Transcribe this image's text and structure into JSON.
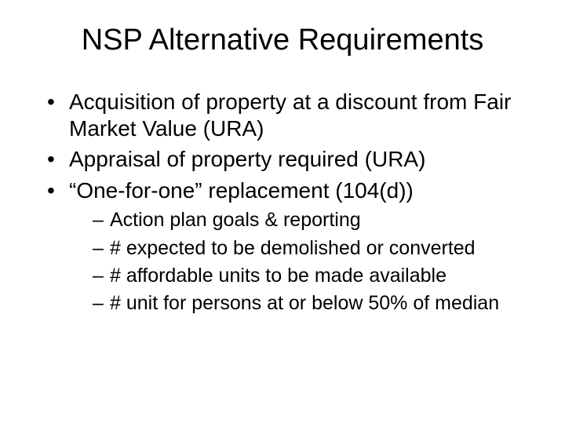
{
  "title": "NSP Alternative Requirements",
  "bullets": [
    {
      "text": "Acquisition of property at a discount from Fair Market Value (URA)"
    },
    {
      "text": "Appraisal of property required (URA)"
    },
    {
      "text": "“One-for-one” replacement (104(d))",
      "sub": [
        "Action plan goals & reporting",
        "# expected to be demolished or converted",
        "# affordable units to be made available",
        "# unit for persons at or below 50% of median"
      ]
    }
  ],
  "style": {
    "background_color": "#ffffff",
    "text_color": "#000000",
    "title_fontsize": 38,
    "level1_fontsize": 28,
    "level2_fontsize": 25,
    "font_family": "Arial"
  }
}
